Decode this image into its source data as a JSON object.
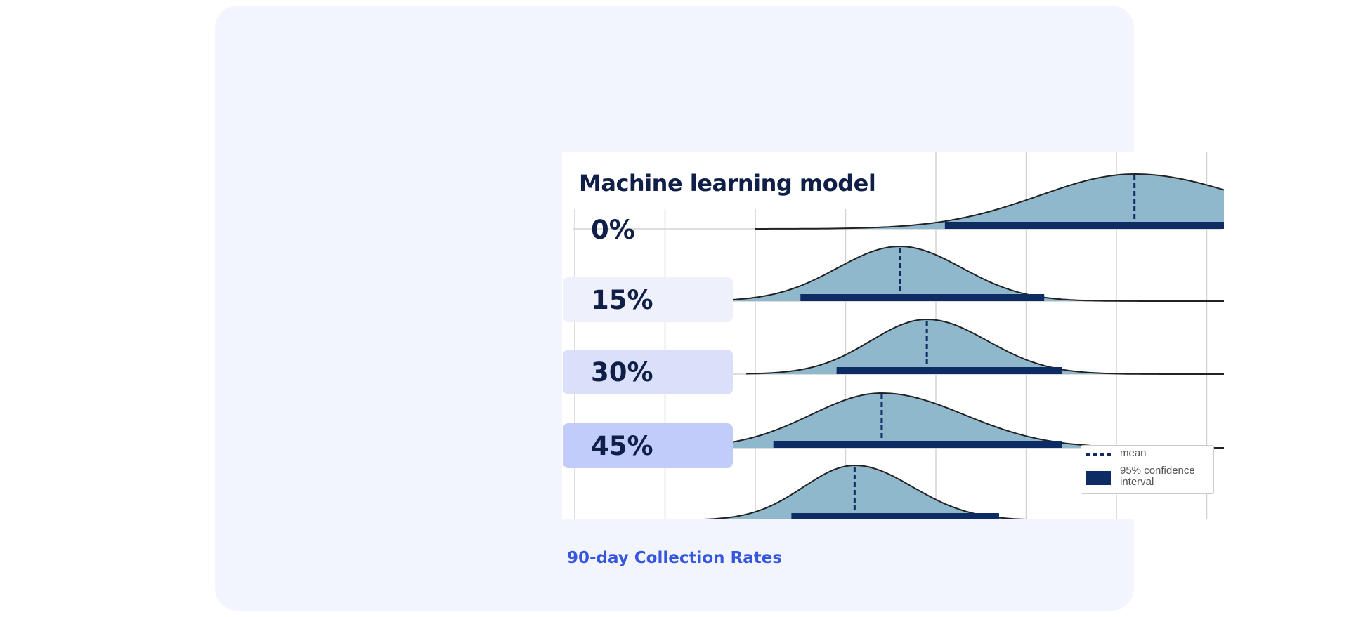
{
  "caption": "90-day Collection Rates",
  "chart_data": {
    "type": "ridgeline",
    "title": "Machine learning model",
    "xlabel": "",
    "ylabel": "",
    "grid": true,
    "legend_position": "bottom-right",
    "legend": {
      "mean": "mean",
      "ci": "95% confidence interval"
    },
    "series": [
      {
        "name": "Machine learning model",
        "mean": 6.2,
        "ci": [
          4.1,
          8.4
        ],
        "range": [
          2.0,
          11.1
        ],
        "skew": 0.25,
        "label_bg": ""
      },
      {
        "name": "0%",
        "mean": 3.6,
        "ci": [
          2.5,
          5.2
        ],
        "range": [
          1.3,
          7.8
        ],
        "skew": 0.0,
        "label_bg": ""
      },
      {
        "name": "15%",
        "mean": 3.9,
        "ci": [
          2.9,
          5.4
        ],
        "range": [
          1.9,
          8.4
        ],
        "skew": 0.15,
        "label_bg": "#eef1fc"
      },
      {
        "name": "30%",
        "mean": 3.4,
        "ci": [
          2.2,
          5.4
        ],
        "range": [
          0.5,
          10.5
        ],
        "skew": 0.3,
        "label_bg": "#dbe0fa"
      },
      {
        "name": "45%",
        "mean": 3.1,
        "ci": [
          2.4,
          4.7
        ],
        "range": [
          1.3,
          8.9
        ],
        "skew": 0.25,
        "label_bg": "#c2ccfb"
      }
    ],
    "colors": {
      "fill": "#8fb8cd",
      "outline": "#222222",
      "mean_line": "#0d2c64",
      "ci_bar": "#0d2c64",
      "grid": "#d3d3d3"
    }
  }
}
